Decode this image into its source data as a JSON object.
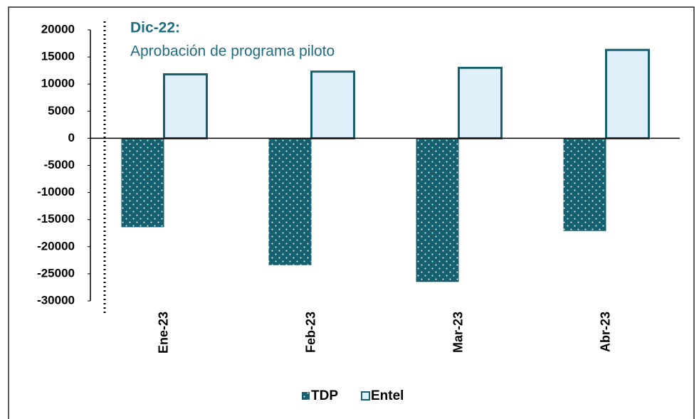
{
  "chart_data": {
    "type": "bar",
    "annotation_title": "Dic-22:",
    "annotation": "Aprobación de programa piloto",
    "categories": [
      "Ene-23",
      "Feb-23",
      "Mar-23",
      "Abr-23"
    ],
    "series": [
      {
        "name": "TDP",
        "color": "#17606f",
        "values": [
          -16400,
          -23400,
          -26500,
          -17100
        ]
      },
      {
        "name": "Entel",
        "color": "#dff0fa",
        "values": [
          11800,
          12300,
          13000,
          16300
        ]
      }
    ],
    "ylim": [
      -30000,
      20000
    ],
    "yticks": [
      20000,
      15000,
      10000,
      5000,
      0,
      -5000,
      -10000,
      -15000,
      -20000,
      -25000,
      -30000
    ]
  }
}
